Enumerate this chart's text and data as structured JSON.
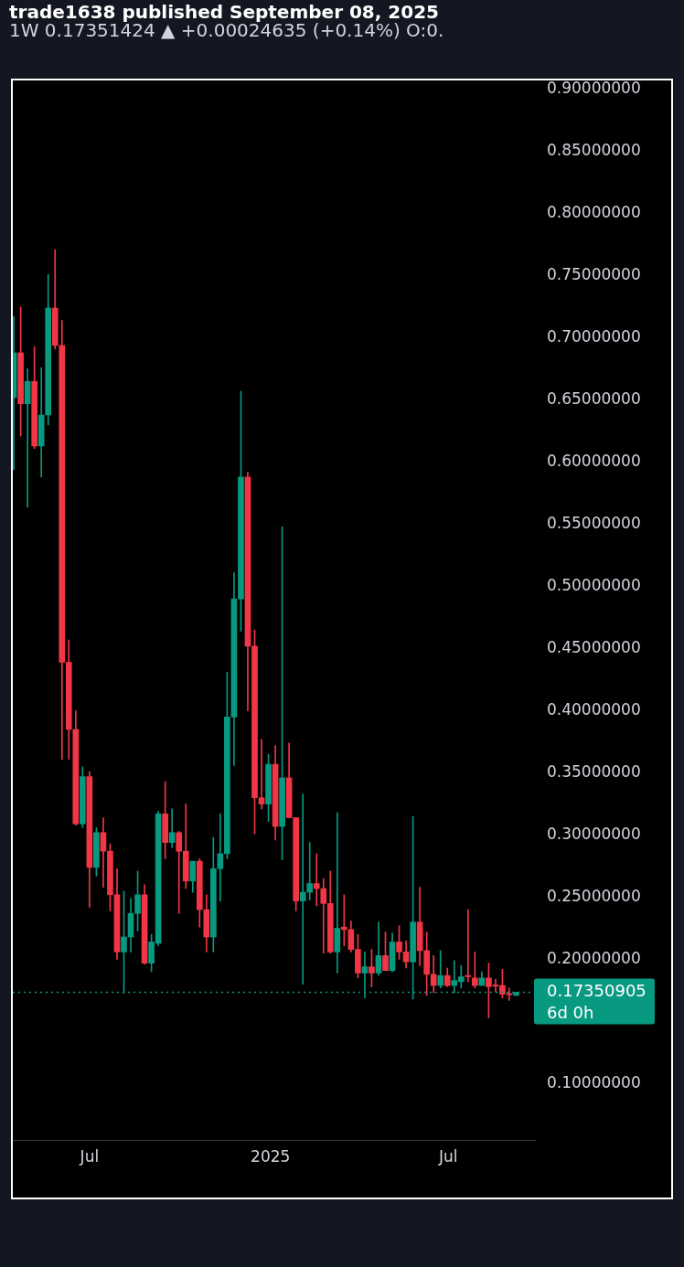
{
  "chart_data": {
    "type": "candlestick",
    "title": "trade1638 published September 08, 2025",
    "subtitle": "1W 0.17351424 ▲ +0.00024635 (+0.14%) O:0.",
    "x": [
      "2024-04-15",
      "2024-04-22",
      "2024-04-29",
      "2024-05-06",
      "2024-05-13",
      "2024-05-20",
      "2024-05-27",
      "2024-06-03",
      "2024-06-10",
      "2024-06-17",
      "2024-06-24",
      "2024-07-01",
      "2024-07-08",
      "2024-07-15",
      "2024-07-22",
      "2024-07-29",
      "2024-08-05",
      "2024-08-12",
      "2024-08-19",
      "2024-08-26",
      "2024-09-02",
      "2024-09-09",
      "2024-09-16",
      "2024-09-23",
      "2024-09-30",
      "2024-10-07",
      "2024-10-14",
      "2024-10-21",
      "2024-10-28",
      "2024-11-04",
      "2024-11-11",
      "2024-11-18",
      "2024-11-25",
      "2024-12-02",
      "2024-12-09",
      "2024-12-16",
      "2024-12-23",
      "2024-12-30",
      "2025-01-06",
      "2025-01-13",
      "2025-01-20",
      "2025-01-27",
      "2025-02-03",
      "2025-02-10",
      "2025-02-17",
      "2025-02-24",
      "2025-03-03",
      "2025-03-10",
      "2025-03-17",
      "2025-03-24",
      "2025-03-31",
      "2025-04-07",
      "2025-04-14",
      "2025-04-21",
      "2025-04-28",
      "2025-05-05",
      "2025-05-12",
      "2025-05-19",
      "2025-05-26",
      "2025-06-02",
      "2025-06-09",
      "2025-06-16",
      "2025-06-23",
      "2025-06-30",
      "2025-07-07",
      "2025-07-14",
      "2025-07-21",
      "2025-07-28",
      "2025-08-04",
      "2025-08-11",
      "2025-08-18",
      "2025-08-25",
      "2025-09-01",
      "2025-09-08"
    ],
    "ohlc": [
      [
        0.652,
        0.717,
        0.594,
        0.688
      ],
      [
        0.688,
        0.725,
        0.621,
        0.647
      ],
      [
        0.647,
        0.675,
        0.564,
        0.665
      ],
      [
        0.665,
        0.693,
        0.611,
        0.613
      ],
      [
        0.613,
        0.676,
        0.588,
        0.638
      ],
      [
        0.638,
        0.751,
        0.63,
        0.724
      ],
      [
        0.724,
        0.771,
        0.691,
        0.694
      ],
      [
        0.694,
        0.714,
        0.361,
        0.439
      ],
      [
        0.439,
        0.457,
        0.361,
        0.385
      ],
      [
        0.385,
        0.4,
        0.308,
        0.309
      ],
      [
        0.309,
        0.355,
        0.306,
        0.347
      ],
      [
        0.347,
        0.351,
        0.242,
        0.274
      ],
      [
        0.274,
        0.306,
        0.267,
        0.302
      ],
      [
        0.302,
        0.314,
        0.258,
        0.287
      ],
      [
        0.287,
        0.293,
        0.239,
        0.252
      ],
      [
        0.252,
        0.273,
        0.2,
        0.206
      ],
      [
        0.206,
        0.255,
        0.173,
        0.218
      ],
      [
        0.218,
        0.249,
        0.206,
        0.237
      ],
      [
        0.237,
        0.271,
        0.223,
        0.252
      ],
      [
        0.252,
        0.26,
        0.196,
        0.197
      ],
      [
        0.197,
        0.22,
        0.19,
        0.214
      ],
      [
        0.213,
        0.319,
        0.211,
        0.317
      ],
      [
        0.317,
        0.343,
        0.281,
        0.294
      ],
      [
        0.294,
        0.321,
        0.29,
        0.302
      ],
      [
        0.302,
        0.303,
        0.237,
        0.287
      ],
      [
        0.287,
        0.325,
        0.257,
        0.263
      ],
      [
        0.263,
        0.279,
        0.254,
        0.279
      ],
      [
        0.279,
        0.281,
        0.226,
        0.24
      ],
      [
        0.24,
        0.252,
        0.206,
        0.218
      ],
      [
        0.218,
        0.298,
        0.206,
        0.273
      ],
      [
        0.273,
        0.317,
        0.247,
        0.285
      ],
      [
        0.285,
        0.431,
        0.281,
        0.395
      ],
      [
        0.395,
        0.511,
        0.356,
        0.49
      ],
      [
        0.49,
        0.657,
        0.464,
        0.588
      ],
      [
        0.588,
        0.592,
        0.4,
        0.452
      ],
      [
        0.452,
        0.465,
        0.301,
        0.33
      ],
      [
        0.33,
        0.377,
        0.321,
        0.325
      ],
      [
        0.325,
        0.365,
        0.311,
        0.357
      ],
      [
        0.357,
        0.372,
        0.296,
        0.307
      ],
      [
        0.307,
        0.548,
        0.28,
        0.346
      ],
      [
        0.346,
        0.374,
        0.314,
        0.314
      ],
      [
        0.314,
        0.314,
        0.239,
        0.247
      ],
      [
        0.247,
        0.333,
        0.18,
        0.254
      ],
      [
        0.254,
        0.294,
        0.248,
        0.261
      ],
      [
        0.261,
        0.285,
        0.243,
        0.257
      ],
      [
        0.257,
        0.265,
        0.205,
        0.245
      ],
      [
        0.245,
        0.271,
        0.205,
        0.206
      ],
      [
        0.206,
        0.318,
        0.189,
        0.225
      ],
      [
        0.226,
        0.252,
        0.211,
        0.224
      ],
      [
        0.224,
        0.231,
        0.206,
        0.208
      ],
      [
        0.208,
        0.22,
        0.185,
        0.189
      ],
      [
        0.189,
        0.206,
        0.169,
        0.194
      ],
      [
        0.194,
        0.208,
        0.178,
        0.189
      ],
      [
        0.189,
        0.23,
        0.187,
        0.203
      ],
      [
        0.203,
        0.222,
        0.191,
        0.191
      ],
      [
        0.191,
        0.221,
        0.19,
        0.214
      ],
      [
        0.214,
        0.227,
        0.2,
        0.206
      ],
      [
        0.206,
        0.215,
        0.193,
        0.198
      ],
      [
        0.198,
        0.315,
        0.168,
        0.23
      ],
      [
        0.23,
        0.258,
        0.195,
        0.207
      ],
      [
        0.207,
        0.222,
        0.171,
        0.188
      ],
      [
        0.188,
        0.203,
        0.173,
        0.179
      ],
      [
        0.179,
        0.207,
        0.177,
        0.187
      ],
      [
        0.187,
        0.193,
        0.178,
        0.179
      ],
      [
        0.179,
        0.199,
        0.173,
        0.183
      ],
      [
        0.182,
        0.195,
        0.177,
        0.186
      ],
      [
        0.187,
        0.24,
        0.182,
        0.186
      ],
      [
        0.185,
        0.206,
        0.177,
        0.179
      ],
      [
        0.179,
        0.19,
        0.179,
        0.185
      ],
      [
        0.185,
        0.197,
        0.153,
        0.178
      ],
      [
        0.1795,
        0.184,
        0.174,
        0.1785
      ],
      [
        0.179,
        0.192,
        0.169,
        0.172
      ],
      [
        0.1725,
        0.177,
        0.167,
        0.1715
      ],
      [
        0.171,
        0.1735,
        0.171,
        0.1735
      ]
    ],
    "colors": [
      "#089981",
      "#f23645",
      "#089981",
      "#f23645",
      "#089981",
      "#089981",
      "#f23645",
      "#f23645",
      "#f23645",
      "#f23645",
      "#089981",
      "#f23645",
      "#089981",
      "#f23645",
      "#f23645",
      "#f23645",
      "#089981",
      "#089981",
      "#089981",
      "#f23645",
      "#089981",
      "#089981",
      "#f23645",
      "#089981",
      "#f23645",
      "#f23645",
      "#089981",
      "#f23645",
      "#f23645",
      "#089981",
      "#089981",
      "#089981",
      "#089981",
      "#089981",
      "#f23645",
      "#f23645",
      "#f23645",
      "#089981",
      "#f23645",
      "#089981",
      "#f23645",
      "#f23645",
      "#089981",
      "#089981",
      "#f23645",
      "#f23645",
      "#f23645",
      "#089981",
      "#f23645",
      "#f23645",
      "#f23645",
      "#089981",
      "#f23645",
      "#089981",
      "#f23645",
      "#089981",
      "#f23645",
      "#f23645",
      "#089981",
      "#f23645",
      "#f23645",
      "#f23645",
      "#089981",
      "#f23645",
      "#089981",
      "#089981",
      "#f23645",
      "#f23645",
      "#089981",
      "#f23645",
      "#f23645",
      "#f23645",
      "#f23645",
      "#089981"
    ],
    "xlim": [
      "2024-04-14",
      "2025-09-28"
    ],
    "xticks": [
      {
        "value": "2024-07-01",
        "label": "Jul"
      },
      {
        "value": "2025-01-01",
        "label": "2025"
      },
      {
        "value": "2025-07-01",
        "label": "Jul"
      }
    ],
    "ylim": [
      0.054,
      0.907
    ],
    "yticks": [
      {
        "value": 0.1,
        "label": "0.10000000"
      },
      {
        "value": 0.2,
        "label": "0.20000000"
      },
      {
        "value": 0.25,
        "label": "0.25000000"
      },
      {
        "value": 0.3,
        "label": "0.30000000"
      },
      {
        "value": 0.35,
        "label": "0.35000000"
      },
      {
        "value": 0.4,
        "label": "0.40000000"
      },
      {
        "value": 0.45,
        "label": "0.45000000"
      },
      {
        "value": 0.5,
        "label": "0.50000000"
      },
      {
        "value": 0.55,
        "label": "0.55000000"
      },
      {
        "value": 0.6,
        "label": "0.60000000"
      },
      {
        "value": 0.65,
        "label": "0.65000000"
      },
      {
        "value": 0.7,
        "label": "0.70000000"
      },
      {
        "value": 0.75,
        "label": "0.75000000"
      },
      {
        "value": 0.8,
        "label": "0.80000000"
      },
      {
        "value": 0.85,
        "label": "0.85000000"
      },
      {
        "value": 0.9,
        "label": "0.90000000"
      }
    ],
    "ref_lines": [
      {
        "axis": "y",
        "value": 0.17350905,
        "label": "0.17350905",
        "color": "#089981",
        "line_style": "dotted"
      }
    ],
    "annotations": [
      "6d 0h"
    ],
    "grid": false,
    "legend": false
  }
}
